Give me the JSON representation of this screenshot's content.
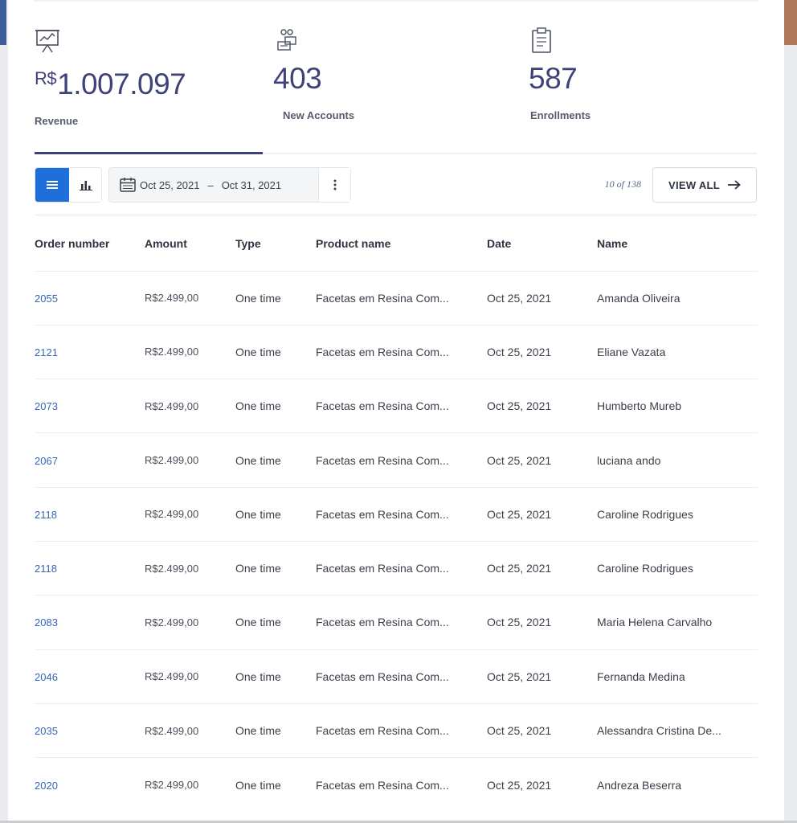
{
  "stats": [
    {
      "icon": "presentation-chart-icon",
      "currency": "R$",
      "value": "1.007.097",
      "label": "Revenue"
    },
    {
      "icon": "accounts-icon",
      "value": "403",
      "label": "New Accounts"
    },
    {
      "icon": "clipboard-icon",
      "value": "587",
      "label": "Enrollments"
    }
  ],
  "toolbar": {
    "date_start": "Oct 25, 2021",
    "date_separator": "–",
    "date_end": "Oct 31, 2021",
    "count_text": "10 of 138",
    "view_all_label": "VIEW ALL",
    "active_view": "list"
  },
  "table": {
    "headers": [
      "Order number",
      "Amount",
      "Type",
      "Product name",
      "Date",
      "Name"
    ],
    "rows": [
      {
        "order": "2055",
        "amount": "R$2.499,00",
        "type": "One time",
        "product": "Facetas em Resina Com...",
        "date": "Oct 25, 2021",
        "name": "Amanda Oliveira"
      },
      {
        "order": "2121",
        "amount": "R$2.499,00",
        "type": "One time",
        "product": "Facetas em Resina Com...",
        "date": "Oct 25, 2021",
        "name": "Eliane Vazata"
      },
      {
        "order": "2073",
        "amount": "R$2.499,00",
        "type": "One time",
        "product": "Facetas em Resina Com...",
        "date": "Oct 25, 2021",
        "name": "Humberto Mureb"
      },
      {
        "order": "2067",
        "amount": "R$2.499,00",
        "type": "One time",
        "product": "Facetas em Resina Com...",
        "date": "Oct 25, 2021",
        "name": "luciana ando"
      },
      {
        "order": "2118",
        "amount": "R$2.499,00",
        "type": "One time",
        "product": "Facetas em Resina Com...",
        "date": "Oct 25, 2021",
        "name": "Caroline Rodrigues"
      },
      {
        "order": "2118",
        "amount": "R$2.499,00",
        "type": "One time",
        "product": "Facetas em Resina Com...",
        "date": "Oct 25, 2021",
        "name": "Caroline Rodrigues"
      },
      {
        "order": "2083",
        "amount": "R$2.499,00",
        "type": "One time",
        "product": "Facetas em Resina Com...",
        "date": "Oct 25, 2021",
        "name": "Maria Helena Carvalho"
      },
      {
        "order": "2046",
        "amount": "R$2.499,00",
        "type": "One time",
        "product": "Facetas em Resina Com...",
        "date": "Oct 25, 2021",
        "name": "Fernanda Medina"
      },
      {
        "order": "2035",
        "amount": "R$2.499,00",
        "type": "One time",
        "product": "Facetas em Resina Com...",
        "date": "Oct 25, 2021",
        "name": "Alessandra Cristina De..."
      },
      {
        "order": "2020",
        "amount": "R$2.499,00",
        "type": "One time",
        "product": "Facetas em Resina Com...",
        "date": "Oct 25, 2021",
        "name": "Andreza Beserra"
      }
    ]
  },
  "colors": {
    "accent": "#1e6fd9",
    "stat_value": "#3f4278",
    "link": "#3567b8",
    "tab_active": "#3e4173"
  }
}
